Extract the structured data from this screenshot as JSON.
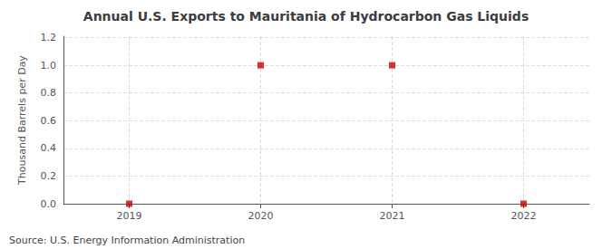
{
  "chart_data": {
    "type": "scatter",
    "title": "Annual U.S. Exports to Mauritania of Hydrocarbon Gas Liquids",
    "ylabel": "Thousand Barrels per Day",
    "annotations": [
      "Source: U.S. Energy Information Administration"
    ],
    "x": [
      2019,
      2020,
      2021,
      2022
    ],
    "values": [
      0,
      1,
      1,
      0
    ],
    "color": "#cc0000",
    "marker": "square",
    "xlim": [
      2018.5,
      2022.5
    ],
    "xticks": [
      2019,
      2020,
      2021,
      2022
    ],
    "ylim": [
      0,
      1.21
    ],
    "yticks": [
      {
        "value": 0.0,
        "label": "0.0"
      },
      {
        "value": 0.2,
        "label": "0.2"
      },
      {
        "value": 0.4,
        "label": "0.4"
      },
      {
        "value": 0.6,
        "label": "0.6"
      },
      {
        "value": 0.8,
        "label": "0.8"
      },
      {
        "value": 1.0,
        "label": "1.0"
      },
      {
        "value": 1.2,
        "label": "1.2"
      }
    ],
    "grid": true
  }
}
